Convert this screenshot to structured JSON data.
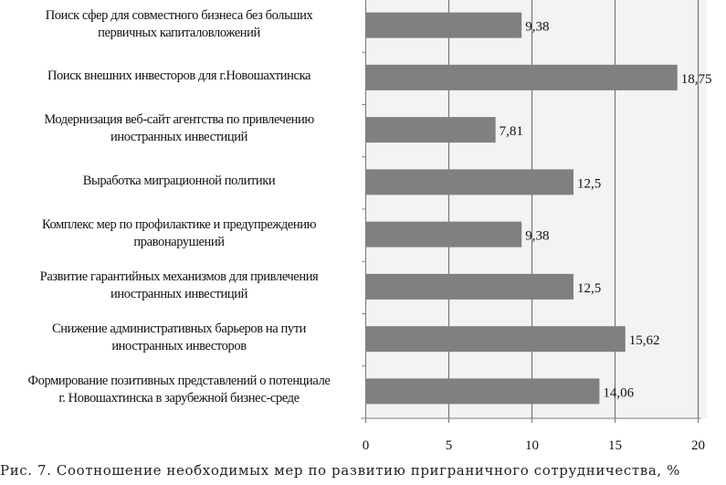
{
  "chart_data": {
    "type": "bar",
    "orientation": "horizontal",
    "categories": [
      [
        "Поиск сфер для совместного бизнеса без больших",
        "первичных капиталовложений"
      ],
      [
        "Поиск внешних инвесторов для г.Новошахтинска"
      ],
      [
        "Модернизация веб-сайт агентства по привлечению",
        "иностранных инвестиций"
      ],
      [
        "Выработка миграционной политики"
      ],
      [
        "Комплекс мер по профилактике и предупреждению",
        "правонарушений"
      ],
      [
        "Развитие гарантийных механизмов для привлечения",
        "иностранных инвестиций"
      ],
      [
        "Снижение административных барьеров на пути",
        "иностранных инвесторов"
      ],
      [
        "Формирование позитивных представлений о потенциале",
        "г. Новошахтинска в зарубежной бизнес-среде"
      ]
    ],
    "values": [
      9.38,
      18.75,
      7.81,
      12.5,
      9.38,
      12.5,
      15.62,
      14.06
    ],
    "value_labels": [
      "9,38",
      "18,75",
      "7,81",
      "12,5",
      "9,38",
      "12,5",
      "15,62",
      "14,06"
    ],
    "xlim": [
      0,
      20
    ],
    "xticks": [
      "0",
      "5",
      "10",
      "15",
      "20"
    ],
    "xtick_values": [
      0,
      5,
      10,
      15,
      20
    ],
    "grid": true,
    "legend": "none",
    "bar_color": "#808080",
    "plot_bg": "#f3f3f3",
    "caption": "Рис. 7. Соотношение необходимых мер по развитию приграничного сотрудничества, %"
  }
}
